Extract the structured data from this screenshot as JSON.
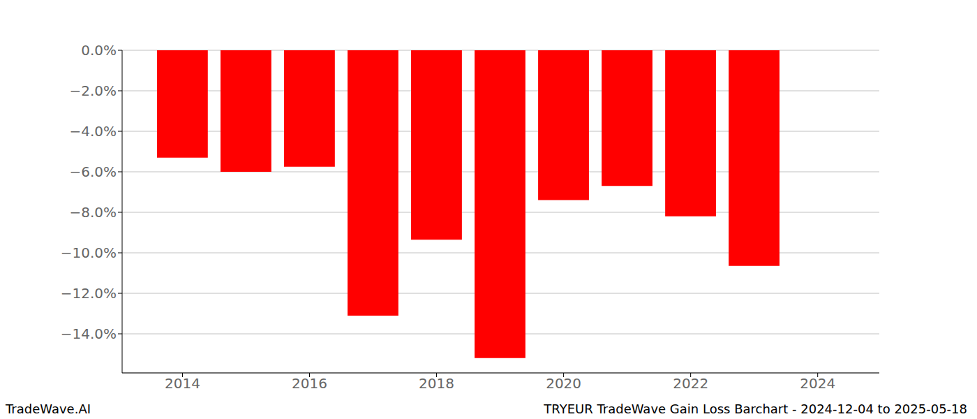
{
  "chart_data": {
    "type": "bar",
    "title": "TRYEUR TradeWave Gain Loss Barchart - 2024-12-04 to 2025-05-18",
    "annotations": [
      "TradeWave.AI"
    ],
    "x": [
      2014,
      2015,
      2016,
      2017,
      2018,
      2019,
      2020,
      2021,
      2022,
      2023
    ],
    "values": [
      -5.3,
      -6.0,
      -5.75,
      -13.1,
      -9.35,
      -15.2,
      -7.4,
      -6.7,
      -8.2,
      -10.65
    ],
    "color": "#ff0000",
    "xlim": [
      2013.05,
      2024.97
    ],
    "xticks": [
      2014,
      2016,
      2018,
      2020,
      2022,
      2024
    ],
    "ylim": [
      -15.93,
      0
    ],
    "yticks": [
      {
        "value": 0,
        "label": "0.0%"
      },
      {
        "value": -2,
        "label": "−2.0%"
      },
      {
        "value": -4,
        "label": "−4.0%"
      },
      {
        "value": -6,
        "label": "−6.0%"
      },
      {
        "value": -8,
        "label": "−8.0%"
      },
      {
        "value": -10,
        "label": "−10.0%"
      },
      {
        "value": -12,
        "label": "−12.0%"
      },
      {
        "value": -14,
        "label": "−14.0%"
      }
    ],
    "grid": true
  }
}
